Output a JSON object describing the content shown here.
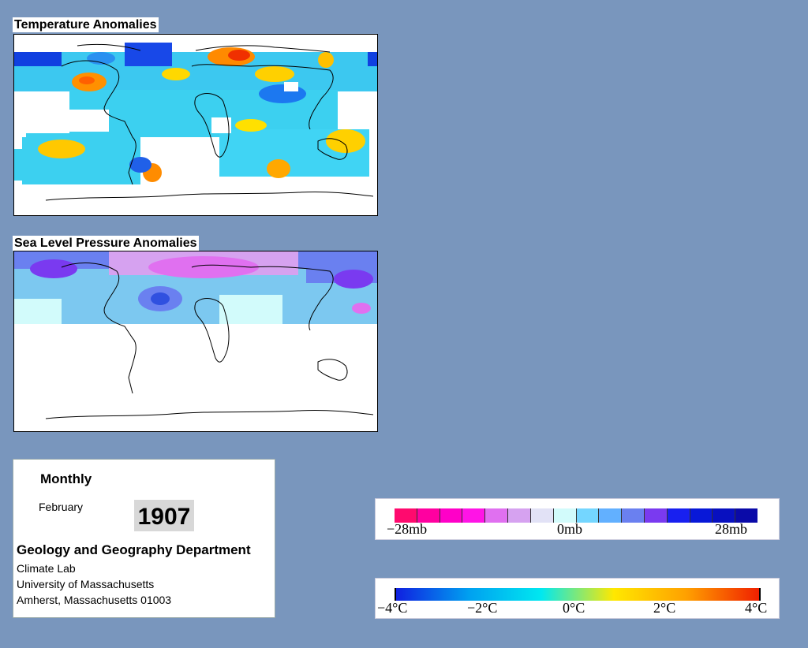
{
  "panels": {
    "temperature": {
      "title": "Temperature Anomalies"
    },
    "pressure": {
      "title": "Sea Level Pressure Anomalies"
    }
  },
  "info": {
    "frequency": "Monthly",
    "month": "February",
    "year": "1907",
    "department": "Geology and Geography Department",
    "lab": "Climate Lab",
    "university": "University of Massachusetts",
    "address": "Amherst, Massachusetts 01003"
  },
  "legends": {
    "pressure": {
      "labels": [
        "−28mb",
        "0mb",
        "28mb"
      ],
      "colors": [
        "#ff0a6e",
        "#ff00a0",
        "#ff00c8",
        "#ff14e6",
        "#e070f0",
        "#d6a2f0",
        "#e2e2f6",
        "#d2fbfb",
        "#74d6ff",
        "#62b0ff",
        "#6a80f0",
        "#7a3af0",
        "#1820f0",
        "#0818d8",
        "#0810c0",
        "#0a0aa8"
      ]
    },
    "temperature": {
      "labels": [
        "−4°C",
        "−2°C",
        "0°C",
        "2°C",
        "4°C"
      ],
      "stops": [
        "#1020e0",
        "#00a0f0",
        "#00e8f0",
        "#ffe800",
        "#ffa000",
        "#f02000"
      ]
    }
  },
  "colors": {
    "background": "#7996bd"
  }
}
